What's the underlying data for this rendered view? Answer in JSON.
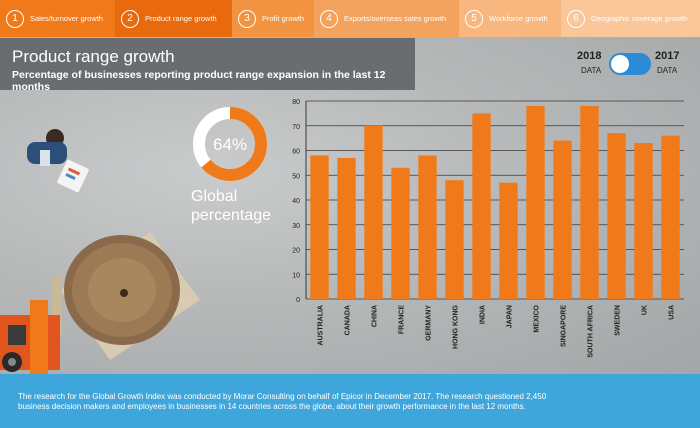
{
  "tabs": [
    {
      "num": "1",
      "label": "Sales/turnover growth"
    },
    {
      "num": "2",
      "label": "Product range growth"
    },
    {
      "num": "3",
      "label": "Profit growth"
    },
    {
      "num": "4",
      "label": "Exports/overseas sales growth"
    },
    {
      "num": "5",
      "label": "Workforce growth"
    },
    {
      "num": "6",
      "label": "Geographic coverage growth"
    }
  ],
  "header": {
    "title": "Product range growth",
    "subtitle": "Percentage of businesses reporting product range expansion in the last 12 months"
  },
  "toggle": {
    "left_year": "2018",
    "left_sub": "DATA",
    "right_year": "2017",
    "right_sub": "DATA"
  },
  "global": {
    "percent_label": "64%",
    "percent": 64,
    "caption_line1": "Global",
    "caption_line2": "percentage"
  },
  "colors": {
    "orange": "#f07a1a",
    "footer_blue": "#3fa6dc",
    "toggle_blue": "#2a8bd6"
  },
  "chart_data": {
    "type": "bar",
    "categories": [
      "AUSTRALIA",
      "CANADA",
      "CHINA",
      "FRANCE",
      "GERMANY",
      "HONG KONG",
      "INDIA",
      "JAPAN",
      "MEXICO",
      "SINGAPORE",
      "SOUTH AFRICA",
      "SWEDEN",
      "UK",
      "USA"
    ],
    "values": [
      58,
      57,
      70,
      53,
      58,
      48,
      75,
      47,
      78,
      64,
      78,
      67,
      63,
      66
    ],
    "ylim": [
      0,
      80
    ],
    "yticks": [
      "0",
      "10",
      "20",
      "30",
      "40",
      "50",
      "60",
      "70",
      "80"
    ],
    "grid": true
  },
  "footer": {
    "text": "The research for the Global Growth Index was conducted by Morar Consulting on behalf of Epicor in December 2017. The research questioned 2,450 business decision makers and employees in businesses in 14 countries across the globe, about their growth performance in the last 12 months."
  }
}
